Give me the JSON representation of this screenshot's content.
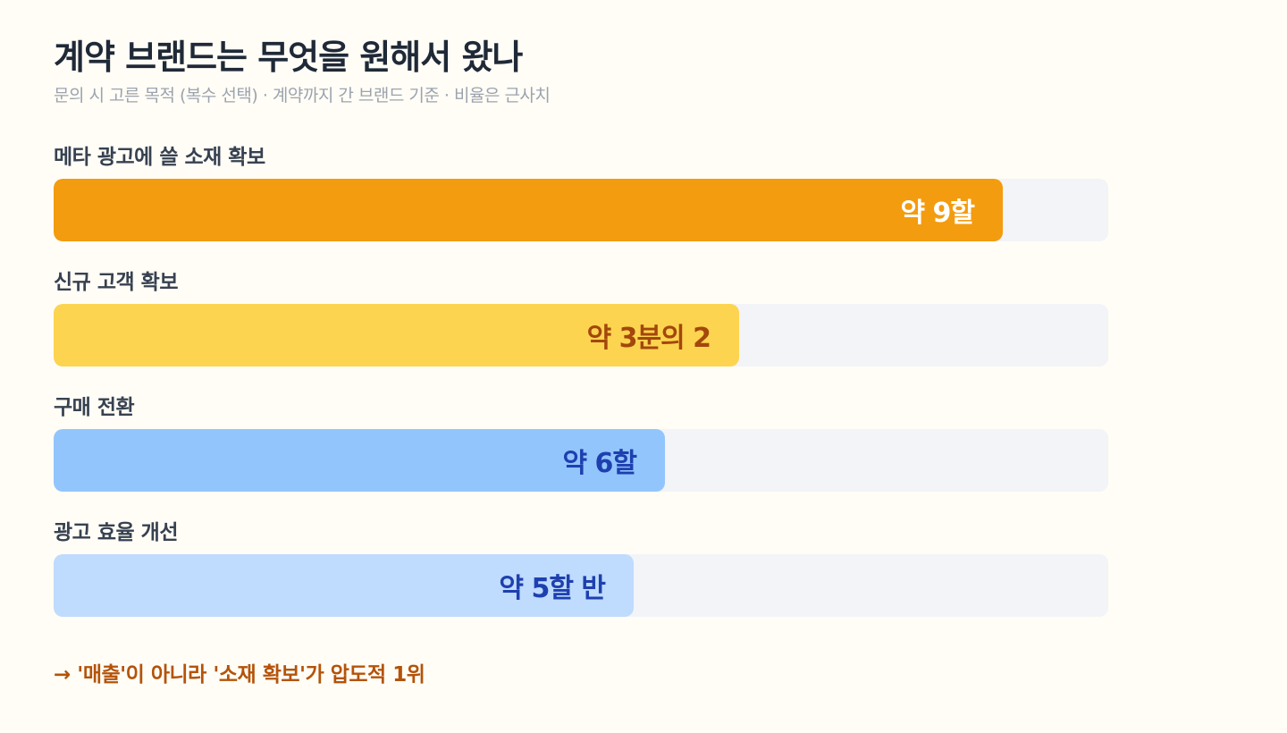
{
  "header": {
    "title": "계약 브랜드는 무엇을 원해서 왔나",
    "subtitle": "문의 시 고른 목적 (복수 선택) · 계약까지 간 브랜드 기준 · 비율은 근사치"
  },
  "colors": {
    "background": "#fffdf6",
    "track": "#f2f4f7",
    "accent_footnote": "#b45309"
  },
  "chart_data": {
    "type": "bar",
    "orientation": "horizontal",
    "categories": [
      "메타 광고에 쓸 소재 확보",
      "신규 고객 확보",
      "구매 전환",
      "광고 효율 개선"
    ],
    "values": [
      0.9,
      0.65,
      0.58,
      0.55
    ],
    "value_labels": [
      "약 9할",
      "약 3분의 2",
      "약 6할",
      "약 5할 반"
    ],
    "xlim": [
      0,
      1
    ],
    "bar_colors": [
      "#f39c0f",
      "#fdd44f",
      "#93c5fd",
      "#bfdbfe"
    ],
    "label_colors": [
      "#ffffff",
      "#a3470d",
      "#1e40af",
      "#1e40af"
    ]
  },
  "footnote": "→ '매출'이 아니라 '소재 확보'가 압도적 1위"
}
